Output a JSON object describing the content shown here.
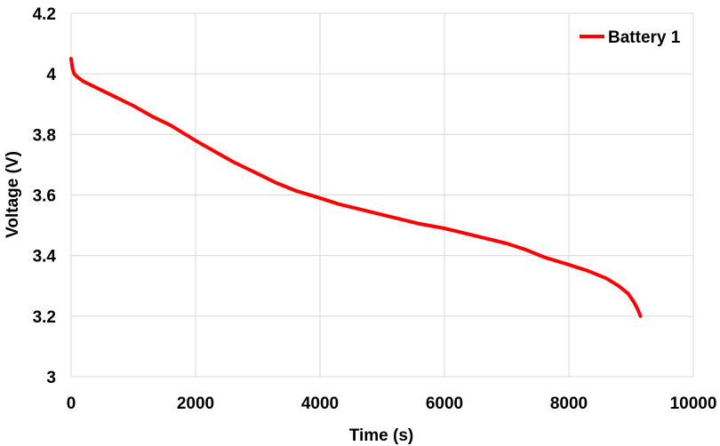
{
  "chart_data": {
    "type": "line",
    "title": "",
    "xlabel": "Time  (s)",
    "ylabel": "Voltage (V)",
    "xlim": [
      0,
      10000
    ],
    "ylim": [
      3,
      4.2
    ],
    "xticks": [
      0,
      2000,
      4000,
      6000,
      8000,
      10000
    ],
    "xtick_labels": [
      "0",
      "2000",
      "4000",
      "6000",
      "8000",
      "10000"
    ],
    "yticks": [
      3,
      3.2,
      3.4,
      3.6,
      3.8,
      4,
      4.2
    ],
    "ytick_labels": [
      "3",
      "3.2",
      "3.4",
      "3.6",
      "3.8",
      "4",
      "4.2"
    ],
    "grid": true,
    "legend_position": "top-right",
    "series": [
      {
        "name": "Battery 1",
        "color": "#ff0000",
        "x": [
          0,
          20,
          50,
          100,
          200,
          300,
          500,
          700,
          1000,
          1300,
          1600,
          2000,
          2300,
          2600,
          3000,
          3300,
          3600,
          4000,
          4300,
          4600,
          5000,
          5300,
          5600,
          6000,
          6300,
          6600,
          7000,
          7300,
          7600,
          8000,
          8300,
          8600,
          8800,
          8950,
          9050,
          9100,
          9150
        ],
        "y": [
          4.05,
          4.02,
          4.0,
          3.99,
          3.975,
          3.965,
          3.945,
          3.925,
          3.895,
          3.86,
          3.83,
          3.78,
          3.745,
          3.71,
          3.67,
          3.64,
          3.615,
          3.59,
          3.57,
          3.555,
          3.535,
          3.52,
          3.505,
          3.49,
          3.475,
          3.46,
          3.44,
          3.42,
          3.395,
          3.37,
          3.35,
          3.325,
          3.3,
          3.275,
          3.245,
          3.225,
          3.2
        ]
      }
    ]
  }
}
